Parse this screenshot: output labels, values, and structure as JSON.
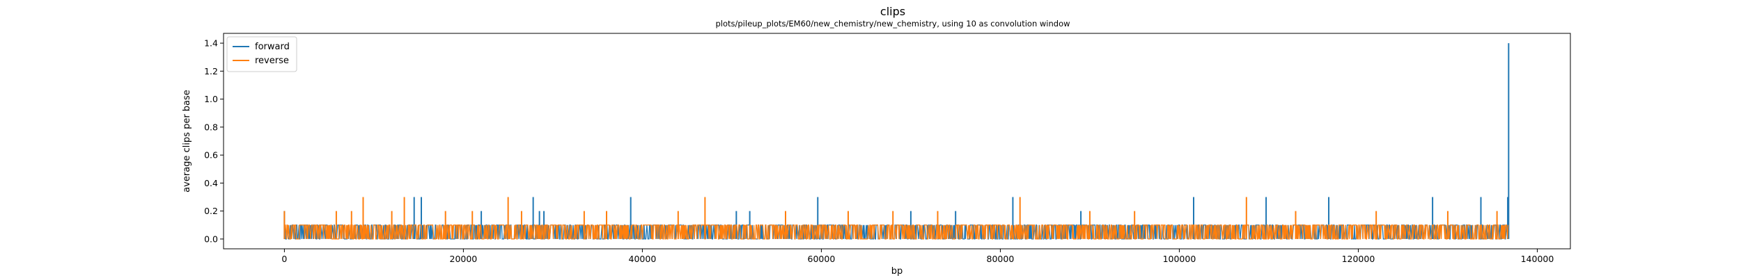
{
  "chart_data": {
    "type": "line",
    "title": "clips",
    "subtitle": "plots/pileup_plots/EM60/new_chemistry/new_chemistry, using 10 as convolution window",
    "xlabel": "bp",
    "ylabel": "average clips per base",
    "xlim": [
      -6800,
      143700
    ],
    "ylim": [
      -0.07,
      1.47
    ],
    "x_ticks": [
      0,
      20000,
      40000,
      60000,
      80000,
      100000,
      120000,
      140000
    ],
    "y_ticks": [
      0.0,
      0.2,
      0.4,
      0.6,
      0.8,
      1.0,
      1.2,
      1.4
    ],
    "grid": false,
    "legend": "top-left",
    "x_max": 136800,
    "bin_width_bp": 10,
    "series": [
      {
        "name": "forward",
        "color": "#1f77b4",
        "baseline": 0.1,
        "spikes": [
          {
            "x": 0,
            "y": 0.2
          },
          {
            "x": 14500,
            "y": 0.3
          },
          {
            "x": 15300,
            "y": 0.3
          },
          {
            "x": 22000,
            "y": 0.2
          },
          {
            "x": 27800,
            "y": 0.3
          },
          {
            "x": 28500,
            "y": 0.2
          },
          {
            "x": 29000,
            "y": 0.2
          },
          {
            "x": 38700,
            "y": 0.3
          },
          {
            "x": 50500,
            "y": 0.2
          },
          {
            "x": 52000,
            "y": 0.2
          },
          {
            "x": 59600,
            "y": 0.3
          },
          {
            "x": 70000,
            "y": 0.2
          },
          {
            "x": 75000,
            "y": 0.2
          },
          {
            "x": 81400,
            "y": 0.3
          },
          {
            "x": 89000,
            "y": 0.2
          },
          {
            "x": 101600,
            "y": 0.3
          },
          {
            "x": 109700,
            "y": 0.3
          },
          {
            "x": 116700,
            "y": 0.3
          },
          {
            "x": 128300,
            "y": 0.3
          },
          {
            "x": 133700,
            "y": 0.3
          },
          {
            "x": 136700,
            "y": 0.3
          },
          {
            "x": 136800,
            "y": 1.4
          }
        ]
      },
      {
        "name": "reverse",
        "color": "#ff7f0e",
        "baseline": 0.1,
        "spikes": [
          {
            "x": 0,
            "y": 0.2
          },
          {
            "x": 5800,
            "y": 0.2
          },
          {
            "x": 7500,
            "y": 0.2
          },
          {
            "x": 8800,
            "y": 0.3
          },
          {
            "x": 12000,
            "y": 0.2
          },
          {
            "x": 13400,
            "y": 0.3
          },
          {
            "x": 18000,
            "y": 0.2
          },
          {
            "x": 21000,
            "y": 0.2
          },
          {
            "x": 25000,
            "y": 0.3
          },
          {
            "x": 26500,
            "y": 0.2
          },
          {
            "x": 33500,
            "y": 0.2
          },
          {
            "x": 36000,
            "y": 0.2
          },
          {
            "x": 44000,
            "y": 0.2
          },
          {
            "x": 47000,
            "y": 0.3
          },
          {
            "x": 56000,
            "y": 0.2
          },
          {
            "x": 63000,
            "y": 0.2
          },
          {
            "x": 68000,
            "y": 0.2
          },
          {
            "x": 73000,
            "y": 0.2
          },
          {
            "x": 82200,
            "y": 0.3
          },
          {
            "x": 90000,
            "y": 0.2
          },
          {
            "x": 95000,
            "y": 0.2
          },
          {
            "x": 107500,
            "y": 0.3
          },
          {
            "x": 113000,
            "y": 0.2
          },
          {
            "x": 122000,
            "y": 0.2
          },
          {
            "x": 130000,
            "y": 0.2
          },
          {
            "x": 135500,
            "y": 0.2
          }
        ]
      }
    ]
  }
}
